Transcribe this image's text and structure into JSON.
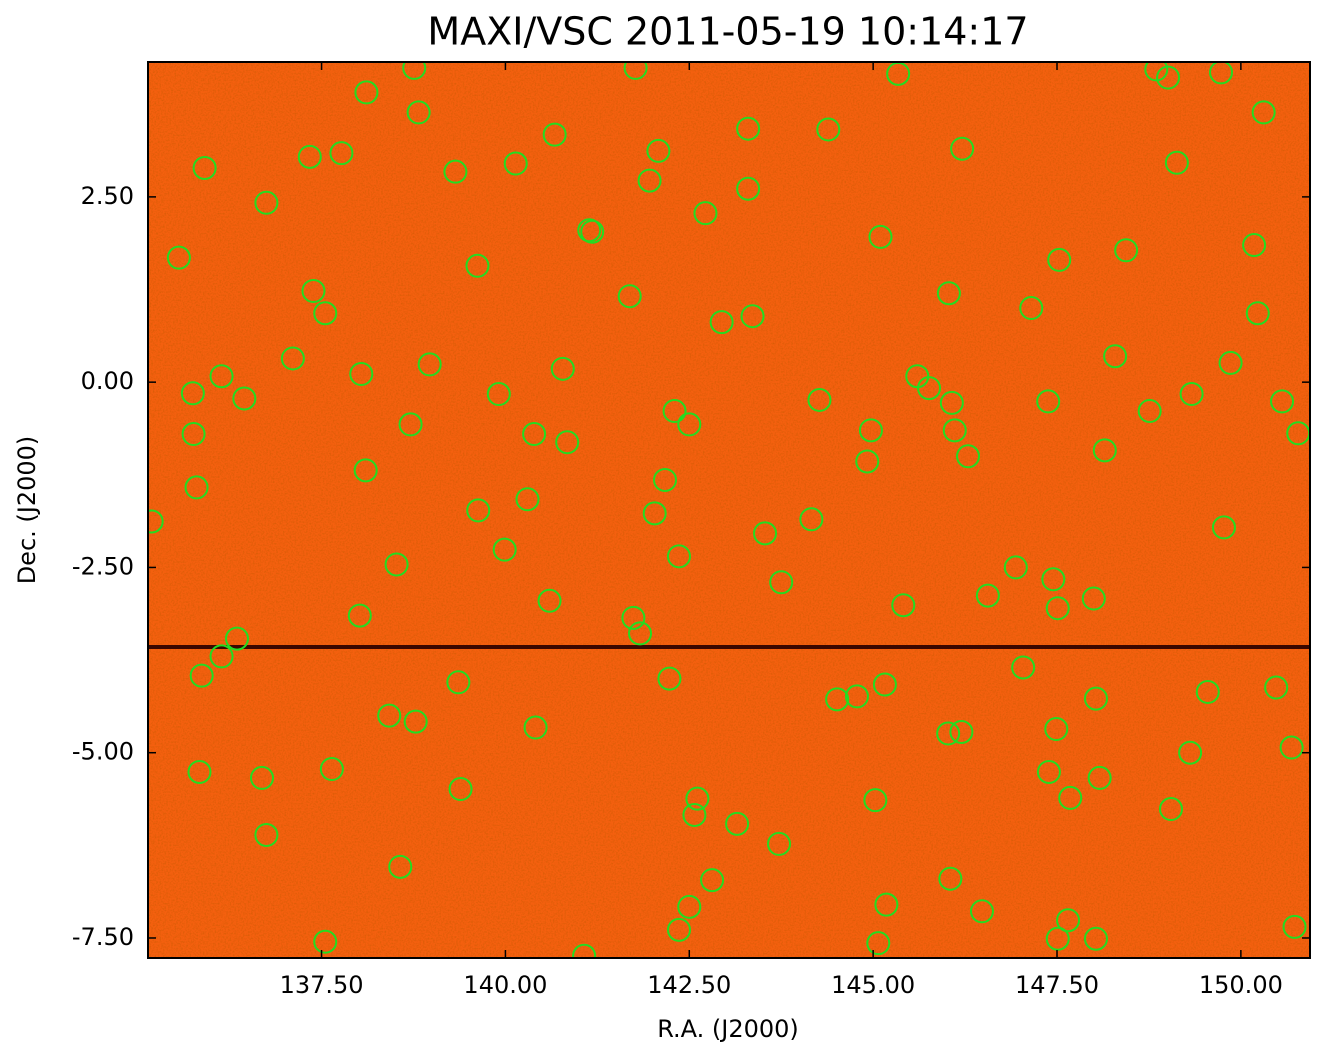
{
  "chart_data": {
    "type": "scatter",
    "title": "MAXI/VSC 2011-05-19 10:14:17",
    "xlabel": "R.A. (J2000)",
    "ylabel": "Dec. (J2000)",
    "color": "#22dd22",
    "x": [
      135.91,
      135.56,
      136.75,
      137.34,
      137.77,
      138.11,
      138.76,
      138.82,
      139.32,
      140.14,
      140.67,
      141.77,
      142.08,
      141.96,
      142.72,
      143.3,
      143.3,
      144.39,
      145.34,
      146.21,
      148.85,
      149.01,
      149.73,
      150.31,
      149.13,
      145.1,
      147.53,
      148.44,
      150.18,
      141.14,
      141.18,
      139.62,
      137.39,
      137.55,
      141.69,
      142.94,
      143.36,
      146.03,
      147.15,
      150.23,
      137.11,
      138.04,
      138.97,
      140.78,
      136.14,
      135.75,
      136.45,
      139.91,
      145.6,
      145.76,
      146.07,
      144.27,
      142.3,
      142.5,
      147.38,
      148.29,
      148.76,
      149.33,
      149.86,
      150.56,
      150.78,
      135.76,
      138.71,
      140.39,
      140.84,
      144.97,
      146.11,
      146.29,
      148.15,
      144.92,
      138.1,
      135.8,
      135.19,
      139.63,
      140.3,
      142.03,
      142.17,
      143.53,
      144.16,
      139.99,
      142.36,
      138.52,
      149.77,
      146.94,
      147.45,
      143.75,
      140.6,
      138.02,
      141.74,
      141.83,
      136.35,
      136.14,
      135.87,
      145.41,
      146.56,
      147.51,
      148.0,
      139.36,
      142.23,
      145.16,
      147.04,
      149.55,
      150.48,
      144.51,
      144.78,
      148.03,
      138.42,
      138.78,
      140.41,
      146.02,
      146.2,
      147.49,
      149.31,
      150.69,
      135.84,
      136.69,
      137.64,
      139.39,
      147.39,
      148.08,
      145.03,
      142.61,
      142.57,
      147.68,
      149.05,
      136.75,
      143.15,
      143.72,
      138.57,
      142.81,
      146.05,
      142.5,
      145.18,
      146.48,
      147.65,
      142.36,
      137.55,
      145.07,
      147.51,
      148.03,
      150.73,
      141.07
    ],
    "values": [
      2.89,
      1.68,
      2.42,
      3.04,
      3.09,
      3.91,
      4.24,
      3.64,
      2.84,
      2.95,
      3.34,
      4.24,
      3.12,
      2.72,
      2.28,
      3.42,
      2.61,
      3.41,
      4.16,
      3.15,
      4.22,
      4.11,
      4.18,
      3.64,
      2.96,
      1.96,
      1.65,
      1.78,
      1.85,
      2.05,
      2.03,
      1.57,
      1.23,
      0.93,
      1.16,
      0.81,
      0.89,
      1.2,
      1.0,
      0.93,
      0.32,
      0.11,
      0.24,
      0.18,
      0.08,
      -0.15,
      -0.22,
      -0.16,
      0.08,
      -0.08,
      -0.28,
      -0.24,
      -0.39,
      -0.57,
      -0.26,
      0.35,
      -0.39,
      -0.16,
      0.26,
      -0.26,
      -0.69,
      -0.7,
      -0.57,
      -0.7,
      -0.81,
      -0.65,
      -0.65,
      -1.0,
      -0.92,
      -1.07,
      -1.19,
      -1.42,
      -1.88,
      -1.73,
      -1.58,
      -1.77,
      -1.32,
      -2.04,
      -1.85,
      -2.26,
      -2.35,
      -2.46,
      -1.96,
      -2.5,
      -2.66,
      -2.7,
      -2.95,
      -3.15,
      -3.18,
      -3.39,
      -3.46,
      -3.7,
      -3.96,
      -3.01,
      -2.88,
      -3.05,
      -2.92,
      -4.05,
      -4.0,
      -4.08,
      -3.85,
      -4.18,
      -4.12,
      -4.28,
      -4.24,
      -4.27,
      -4.5,
      -4.58,
      -4.66,
      -4.74,
      -4.72,
      -4.68,
      -5.0,
      -4.93,
      -5.26,
      -5.34,
      -5.22,
      -5.49,
      -5.26,
      -5.34,
      -5.64,
      -5.62,
      -5.84,
      -5.61,
      -5.76,
      -6.11,
      -5.96,
      -6.23,
      -6.54,
      -6.72,
      -6.7,
      -7.08,
      -7.05,
      -7.14,
      -7.26,
      -7.39,
      -7.55,
      -7.57,
      -7.51,
      -7.51,
      -7.35,
      -7.74
    ],
    "xlim": [
      135.14,
      150.94
    ],
    "ylim": [
      -7.77,
      4.32
    ],
    "xticks": [
      {
        "value": 137.5,
        "label": "137.50"
      },
      {
        "value": 140,
        "label": "140.00"
      },
      {
        "value": 142.5,
        "label": "142.50"
      },
      {
        "value": 145,
        "label": "145.00"
      },
      {
        "value": 147.5,
        "label": "147.50"
      },
      {
        "value": 150,
        "label": "150.00"
      }
    ],
    "yticks": [
      {
        "value": 2.5,
        "label": "2.50"
      },
      {
        "value": 0,
        "label": "0.00"
      },
      {
        "value": -2.5,
        "label": "-2.50"
      },
      {
        "value": -5,
        "label": "-5.00"
      },
      {
        "value": -7.5,
        "label": "-7.50"
      }
    ]
  }
}
